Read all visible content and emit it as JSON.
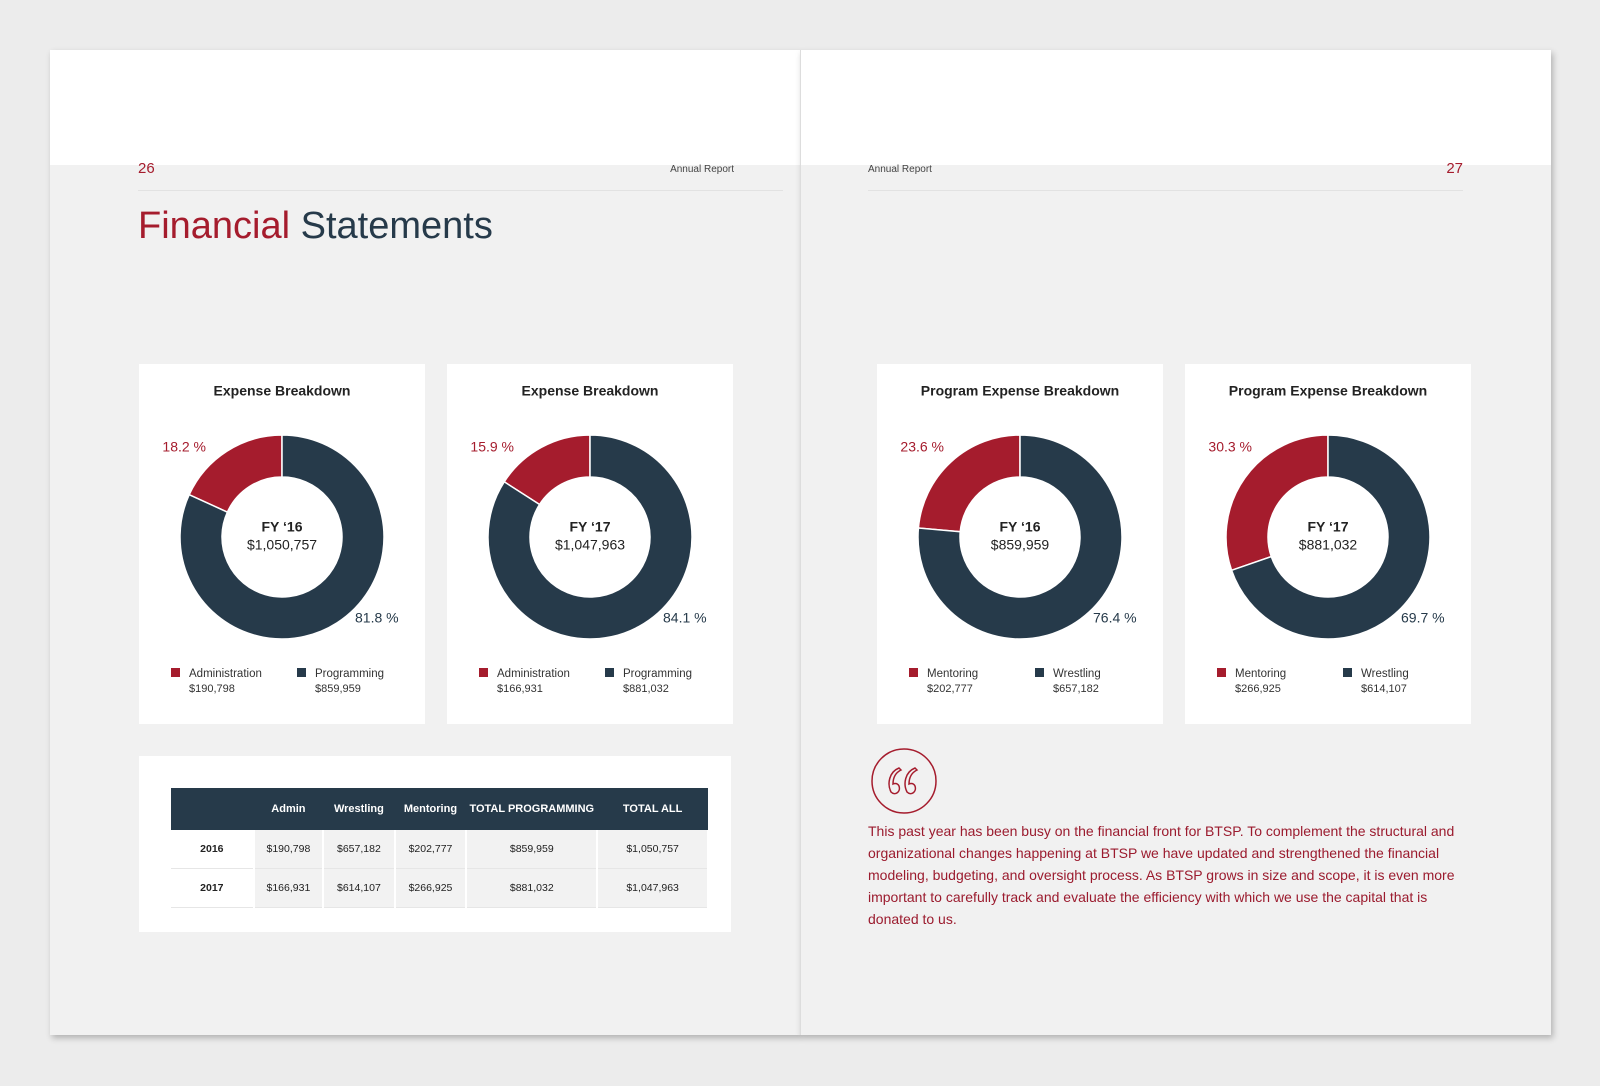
{
  "header": {
    "left_page": "26",
    "left_label": "Annual Report",
    "right_label": "Annual Report",
    "right_page": "27"
  },
  "title": {
    "accent": "Financial",
    "rest": "Statements"
  },
  "chart_data": [
    {
      "type": "pie",
      "title": "Expense Breakdown",
      "center_title": "FY ‘16",
      "center_value": "$1,050,757",
      "categories": [
        "Administration",
        "Programming"
      ],
      "amounts": [
        "$190,798",
        "$859,959"
      ],
      "values": [
        18.2,
        81.8
      ],
      "value_labels": [
        "18.2 %",
        "81.8 %"
      ],
      "colors": [
        "#a51c2d",
        "#263a4a"
      ]
    },
    {
      "type": "pie",
      "title": "Expense Breakdown",
      "center_title": "FY ‘17",
      "center_value": "$1,047,963",
      "categories": [
        "Administration",
        "Programming"
      ],
      "amounts": [
        "$166,931",
        "$881,032"
      ],
      "values": [
        15.9,
        84.1
      ],
      "value_labels": [
        "15.9 %",
        "84.1 %"
      ],
      "colors": [
        "#a51c2d",
        "#263a4a"
      ]
    },
    {
      "type": "pie",
      "title": "Program Expense Breakdown",
      "center_title": "FY ‘16",
      "center_value": "$859,959",
      "categories": [
        "Mentoring",
        "Wrestling"
      ],
      "amounts": [
        "$202,777",
        "$657,182"
      ],
      "values": [
        23.6,
        76.4
      ],
      "value_labels": [
        "23.6 %",
        "76.4 %"
      ],
      "colors": [
        "#a51c2d",
        "#263a4a"
      ]
    },
    {
      "type": "pie",
      "title": "Program Expense Breakdown",
      "center_title": "FY ‘17",
      "center_value": "$881,032",
      "categories": [
        "Mentoring",
        "Wrestling"
      ],
      "amounts": [
        "$266,925",
        "$614,107"
      ],
      "values": [
        30.3,
        69.7
      ],
      "value_labels": [
        "30.3 %",
        "69.7 %"
      ],
      "colors": [
        "#a51c2d",
        "#263a4a"
      ]
    }
  ],
  "table": {
    "columns": [
      "Admin",
      "Wrestling",
      "Mentoring",
      "TOTAL PROGRAMMING",
      "TOTAL ALL"
    ],
    "rows": [
      [
        "2016",
        "$190,798",
        "$657,182",
        "$202,777",
        "$859,959",
        "$1,050,757"
      ],
      [
        "2017",
        "$166,931",
        "$614,107",
        "$266,925",
        "$881,032",
        "$1,047,963"
      ]
    ]
  },
  "quote": "This past year has been busy on the financial front for BTSP.  To complement the structural and organizational changes happening at BTSP we have updated and strengthened the financial modeling, budgeting, and oversight process.  As BTSP grows in size and scope, it is even more important to carefully track and evaluate the efficiency with which we use the capital that is donated to us."
}
